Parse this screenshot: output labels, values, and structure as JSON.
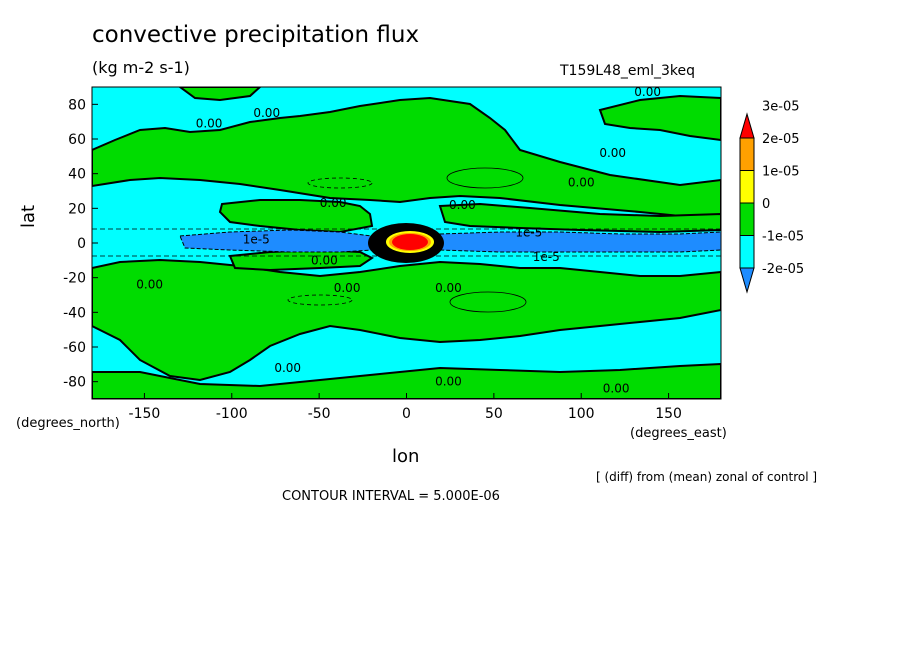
{
  "chart_data": {
    "type": "heatmap",
    "title": "convective precipitation flux",
    "units": "(kg m-2 s-1)",
    "run_name": "T159L48_eml_3keq",
    "xlabel": "lon",
    "ylabel": "lat",
    "x_unit": "(degrees_east)",
    "y_unit": "(degrees_north)",
    "xlim": [
      -180,
      180
    ],
    "ylim": [
      -90,
      90
    ],
    "x_ticks": [
      -150,
      -100,
      -50,
      0,
      50,
      100,
      150
    ],
    "x_tick_labels": [
      "-150",
      "-100",
      "-50",
      "0",
      "50",
      "100",
      "150"
    ],
    "y_ticks": [
      -80,
      -60,
      -40,
      -20,
      0,
      20,
      40,
      60,
      80
    ],
    "y_tick_labels": [
      "-80",
      "-60",
      "-40",
      "-20",
      "0",
      "20",
      "40",
      "60",
      "80"
    ],
    "diff_note": "[ (diff) from (mean) zonal of control ]",
    "contour_interval_text": "CONTOUR INTERVAL = 5.000E-06",
    "colorbar": {
      "levels": [
        -2e-05,
        -1e-05,
        0,
        1e-05,
        2e-05,
        3e-05
      ],
      "labels": [
        "-2e-05",
        "-1e-05",
        "0",
        "1e-05",
        "2e-05",
        "3e-05"
      ],
      "colors": [
        "#1e8cff",
        "#00ffff",
        "#00dc00",
        "#ffff00",
        "#ffa000",
        "#ff0000"
      ]
    },
    "contour_labels": [
      {
        "text": "0.00",
        "lon": -113,
        "lat": 69
      },
      {
        "text": "0.00",
        "lon": -80,
        "lat": 75
      },
      {
        "text": "0.00",
        "lon": 118,
        "lat": 52
      },
      {
        "text": "0.00",
        "lon": 100,
        "lat": 35
      },
      {
        "text": "0.00",
        "lon": -42,
        "lat": 23
      },
      {
        "text": "0.00",
        "lon": 32,
        "lat": 22
      },
      {
        "text": "0.00",
        "lon": 138,
        "lat": 87
      },
      {
        "text": "1e-5",
        "lon": -86,
        "lat": 2
      },
      {
        "text": "1e-5",
        "lon": 70,
        "lat": 6
      },
      {
        "text": "1e-5",
        "lon": 80,
        "lat": -8
      },
      {
        "text": "0.00",
        "lon": -47,
        "lat": -10
      },
      {
        "text": "0.00",
        "lon": -147,
        "lat": -24
      },
      {
        "text": "0.00",
        "lon": -34,
        "lat": -26
      },
      {
        "text": "0.00",
        "lon": 24,
        "lat": -26
      },
      {
        "text": "0.00",
        "lon": -68,
        "lat": -72
      },
      {
        "text": "0.00",
        "lon": 24,
        "lat": -80
      },
      {
        "text": "0.00",
        "lon": 120,
        "lat": -84
      }
    ],
    "regions": [
      {
        "name": "north-green-band",
        "level": 0,
        "lon_min": -180,
        "lon_max": 180,
        "lat_min": 15,
        "lat_max": 55
      },
      {
        "name": "south-green-band",
        "level": 0,
        "lon_min": -180,
        "lon_max": 180,
        "lat_min": -55,
        "lat_max": -12
      },
      {
        "name": "equatorial-negative-band",
        "level": -1e-05,
        "lon_min": -180,
        "lon_max": 180,
        "lat_min": -6,
        "lat_max": 6
      },
      {
        "name": "equatorial-peak",
        "level": 3e-05,
        "lon_center": 0,
        "lat_center": 0
      }
    ]
  }
}
